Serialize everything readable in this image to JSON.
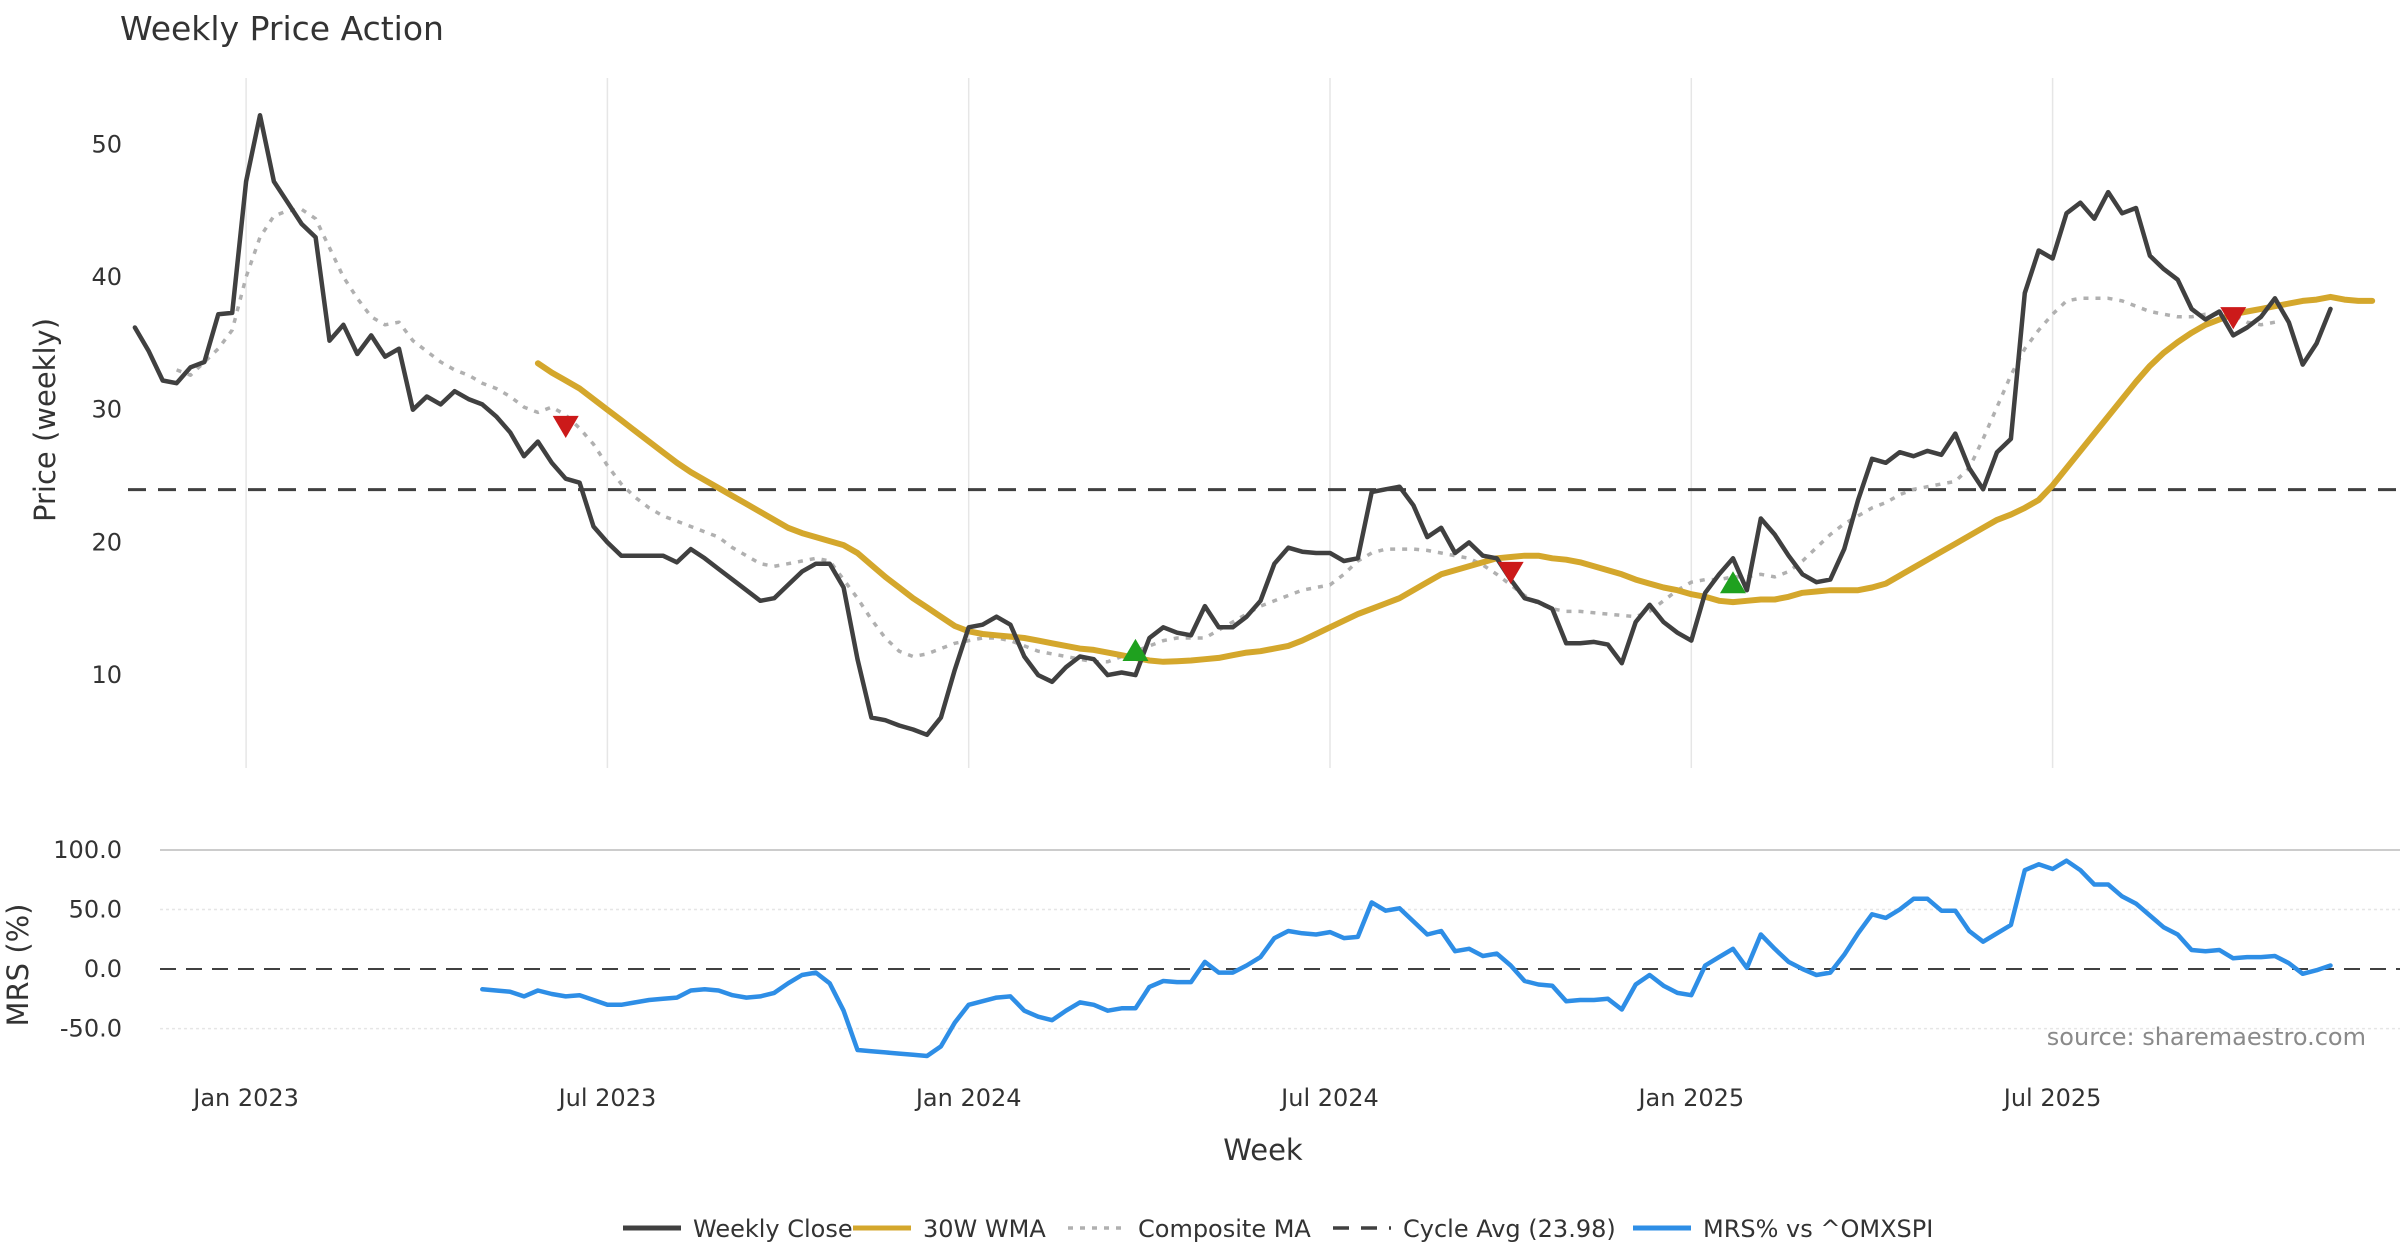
{
  "chart_data": {
    "type": "line",
    "title": "Weekly Price Action",
    "xlabel": "Week",
    "source": "source: sharemaestro.com",
    "x_ticks": [
      "Jan 2023",
      "Jul 2023",
      "Jan 2024",
      "Jul 2024",
      "Jan 2025",
      "Jul 2025"
    ],
    "x_tick_positions": [
      5,
      31,
      57,
      83,
      109,
      135
    ],
    "x_range": [
      -3.5,
      160
    ],
    "price_panel": {
      "ylabel": "Price (weekly)",
      "ylim": [
        3,
        55
      ],
      "yticks": [
        "10",
        "20",
        "30",
        "40",
        "50"
      ],
      "cycle_avg": 23.98,
      "series": [
        {
          "name": "Weekly Close",
          "color": "#404040",
          "start": -3,
          "values": [
            36.2,
            34.4,
            32.2,
            32.0,
            33.2,
            33.6,
            37.2,
            37.3,
            47.2,
            52.2,
            47.2,
            45.6,
            44.0,
            43.0,
            35.2,
            36.4,
            34.2,
            35.6,
            34.0,
            34.6,
            30.0,
            31.0,
            30.4,
            31.4,
            30.8,
            30.4,
            29.5,
            28.3,
            26.5,
            27.6,
            26.0,
            24.8,
            24.5,
            21.2,
            20.0,
            19.0,
            19.0,
            19.0,
            19.0,
            18.5,
            19.5,
            18.8,
            18.0,
            17.2,
            16.4,
            15.6,
            15.8,
            16.8,
            17.8,
            18.4,
            18.4,
            16.6,
            11.2,
            6.8,
            6.6,
            6.2,
            5.9,
            5.5,
            6.8,
            10.4,
            13.6,
            13.8,
            14.4,
            13.8,
            11.4,
            10.0,
            9.5,
            10.6,
            11.4,
            11.2,
            10.0,
            10.2,
            10.0,
            12.8,
            13.6,
            13.2,
            13.0,
            15.2,
            13.6,
            13.6,
            14.4,
            15.6,
            18.4,
            19.6,
            19.3,
            19.2,
            19.2,
            18.6,
            18.8,
            23.8,
            24.0,
            24.2,
            22.8,
            20.4,
            21.1,
            19.2,
            20.0,
            19.0,
            18.8,
            17.2,
            15.8,
            15.5,
            15.0,
            12.4,
            12.4,
            12.5,
            12.3,
            10.9,
            14.0,
            15.3,
            14.0,
            13.2,
            12.6,
            16.2,
            17.6,
            18.8,
            16.4,
            21.8,
            20.6,
            19.0,
            17.6,
            17.0,
            17.2,
            19.5,
            23.2,
            26.3,
            26.0,
            26.8,
            26.5,
            26.9,
            26.6,
            28.2,
            25.6,
            24.0,
            26.8,
            27.8,
            38.8,
            42.0,
            41.4,
            44.8,
            45.6,
            44.4,
            46.4,
            44.8,
            45.2,
            41.6,
            40.6,
            39.8,
            37.6,
            36.8,
            37.4,
            35.6,
            36.2,
            37.0,
            38.4,
            36.6,
            33.4,
            35.0,
            37.6
          ]
        },
        {
          "name": "30W WMA",
          "color": "#d4a72c",
          "start": 26,
          "values": [
            33.5,
            32.8,
            32.2,
            31.6,
            30.8,
            30.0,
            29.2,
            28.4,
            27.6,
            26.8,
            26.0,
            25.3,
            24.7,
            24.1,
            23.5,
            22.9,
            22.3,
            21.7,
            21.1,
            20.7,
            20.4,
            20.1,
            19.8,
            19.2,
            18.3,
            17.4,
            16.6,
            15.8,
            15.1,
            14.4,
            13.7,
            13.3,
            13.1,
            13.0,
            12.9,
            12.8,
            12.6,
            12.4,
            12.2,
            12.0,
            11.9,
            11.7,
            11.5,
            11.3,
            11.1,
            11.0,
            11.05,
            11.1,
            11.2,
            11.3,
            11.5,
            11.7,
            11.8,
            12.0,
            12.2,
            12.6,
            13.1,
            13.6,
            14.1,
            14.6,
            15.0,
            15.4,
            15.8,
            16.4,
            17.0,
            17.6,
            17.9,
            18.2,
            18.5,
            18.8,
            18.9,
            19.0,
            19.0,
            18.8,
            18.7,
            18.5,
            18.2,
            17.9,
            17.6,
            17.2,
            16.9,
            16.6,
            16.4,
            16.1,
            15.9,
            15.6,
            15.5,
            15.6,
            15.7,
            15.7,
            15.9,
            16.2,
            16.3,
            16.4,
            16.4,
            16.4,
            16.6,
            16.9,
            17.5,
            18.1,
            18.7,
            19.3,
            19.9,
            20.5,
            21.1,
            21.7,
            22.1,
            22.6,
            23.2,
            24.3,
            25.6,
            26.9,
            28.2,
            29.5,
            30.8,
            32.1,
            33.3,
            34.3,
            35.1,
            35.8,
            36.4,
            36.8,
            37.2,
            37.4,
            37.6,
            37.8,
            38.0,
            38.2,
            38.3,
            38.5,
            38.3,
            38.2,
            38.2
          ]
        },
        {
          "name": "Composite MA",
          "color": "#b0b0b0",
          "start": 0,
          "values": [
            33.0,
            32.6,
            33.6,
            34.6,
            36.0,
            40.0,
            43.0,
            44.6,
            45.0,
            45.1,
            44.4,
            42.2,
            40.0,
            38.4,
            37.0,
            36.4,
            36.6,
            35.2,
            34.4,
            33.6,
            33.0,
            32.6,
            32.0,
            31.6,
            31.0,
            30.2,
            29.8,
            30.2,
            29.6,
            28.6,
            27.4,
            25.8,
            24.4,
            23.4,
            22.6,
            22.0,
            21.6,
            21.2,
            20.8,
            20.4,
            19.6,
            19.0,
            18.4,
            18.2,
            18.4,
            18.6,
            18.8,
            18.6,
            17.2,
            15.8,
            14.2,
            12.8,
            11.8,
            11.4,
            11.6,
            12.0,
            12.4,
            12.6,
            12.8,
            12.8,
            12.6,
            12.2,
            11.8,
            11.6,
            11.4,
            11.2,
            11.0,
            11.0,
            11.4,
            11.8,
            12.2,
            12.6,
            12.8,
            12.8,
            12.8,
            13.4,
            14.0,
            14.6,
            15.2,
            15.6,
            16.0,
            16.4,
            16.6,
            16.8,
            17.6,
            18.6,
            19.2,
            19.5,
            19.5,
            19.5,
            19.4,
            19.2,
            19.0,
            18.8,
            18.3,
            17.6,
            16.8,
            16.0,
            15.4,
            15.0,
            14.8,
            14.8,
            14.7,
            14.6,
            14.5,
            14.4,
            14.8,
            15.6,
            16.4,
            17.0,
            17.2,
            17.2,
            17.4,
            17.4,
            17.6,
            17.4,
            17.8,
            18.6,
            19.6,
            20.6,
            21.4,
            22.0,
            22.6,
            23.0,
            23.6,
            24.0,
            24.2,
            24.4,
            24.6,
            25.6,
            27.8,
            30.2,
            32.6,
            34.6,
            36.0,
            37.2,
            38.2,
            38.4,
            38.4,
            38.4,
            38.2,
            37.8,
            37.4,
            37.2,
            37.0,
            37.0,
            37.2,
            37.2,
            37.2,
            36.6,
            36.4,
            36.6
          ]
        }
      ],
      "signals": [
        {
          "type": "sell",
          "x": 28,
          "y": 28.8,
          "color": "#cc1a1a"
        },
        {
          "type": "buy",
          "x": 69,
          "y": 11.8,
          "color": "#1fa11f"
        },
        {
          "type": "sell",
          "x": 96,
          "y": 17.8,
          "color": "#cc1a1a"
        },
        {
          "type": "buy",
          "x": 112,
          "y": 16.9,
          "color": "#1fa11f"
        },
        {
          "type": "sell",
          "x": 148,
          "y": 37.0,
          "color": "#cc1a1a"
        }
      ]
    },
    "mrs_panel": {
      "ylabel": "MRS (%)",
      "ylim": [
        -68,
        100
      ],
      "yticks": [
        "100.0",
        "50.0",
        "0.0",
        "-50.0"
      ],
      "series": {
        "name": "MRS% vs ^OMXSPI",
        "color": "#2e8ee6",
        "start": 22,
        "values": [
          -17,
          -18,
          -19,
          -23,
          -18,
          -21,
          -23,
          -22,
          -26,
          -30,
          -30,
          -28,
          -26,
          -25,
          -24,
          -18,
          -17,
          -18,
          -22,
          -24,
          -23,
          -20,
          -12,
          -5,
          -3,
          -12,
          -35,
          -68,
          -69,
          -70,
          -71,
          -72,
          -73,
          -65,
          -45,
          -30,
          -27,
          -24,
          -23,
          -35,
          -40,
          -43,
          -35,
          -28,
          -30,
          -35,
          -33,
          -33,
          -15,
          -10,
          -11,
          -11,
          6,
          -3,
          -3,
          3,
          10,
          26,
          32,
          30,
          29,
          31,
          26,
          27,
          56,
          49,
          51,
          40,
          29,
          32,
          15,
          17,
          11,
          13,
          3,
          -10,
          -13,
          -14,
          -27,
          -26,
          -26,
          -25,
          -34,
          -13,
          -5,
          -14,
          -20,
          -22,
          3,
          10,
          17,
          1,
          29,
          17,
          6,
          0,
          -5,
          -3,
          12,
          30,
          46,
          43,
          50,
          59,
          59,
          49,
          49,
          32,
          23,
          30,
          37,
          83,
          88,
          84,
          91,
          83,
          71,
          71,
          61,
          55,
          45,
          35,
          29,
          16,
          15,
          16,
          9,
          10,
          10,
          11,
          5,
          -4,
          -1,
          3
        ]
      }
    },
    "legend": [
      {
        "label": "Weekly Close",
        "style": "solid",
        "color": "#404040"
      },
      {
        "label": "30W WMA",
        "style": "solid",
        "color": "#d4a72c"
      },
      {
        "label": "Composite MA",
        "style": "dotted",
        "color": "#b0b0b0"
      },
      {
        "label": "Cycle Avg (23.98)",
        "style": "dashed",
        "color": "#404040"
      },
      {
        "label": "MRS% vs ^OMXSPI",
        "style": "solid",
        "color": "#2e8ee6"
      }
    ]
  }
}
